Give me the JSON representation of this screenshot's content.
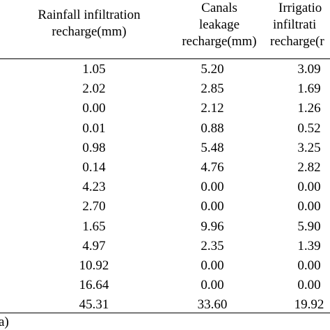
{
  "table": {
    "headers": [
      {
        "lines": [
          "Rainfall infiltration",
          "recharge(mm)"
        ]
      },
      {
        "lines": [
          "Canals",
          "leakage",
          "recharge(mm)"
        ]
      },
      {
        "lines": [
          "Irrigatio",
          "infiltrati",
          "recharge(r"
        ]
      }
    ],
    "rows": [
      [
        "1.05",
        "5.20",
        "3.09"
      ],
      [
        "2.02",
        "2.85",
        "1.69"
      ],
      [
        "0.00",
        "2.12",
        "1.26"
      ],
      [
        "0.01",
        "0.88",
        "0.52"
      ],
      [
        "0.98",
        "5.48",
        "3.25"
      ],
      [
        "0.14",
        "4.76",
        "2.82"
      ],
      [
        "4.23",
        "0.00",
        "0.00"
      ],
      [
        "2.70",
        "0.00",
        "0.00"
      ],
      [
        "1.65",
        "9.96",
        "5.90"
      ],
      [
        "4.97",
        "2.35",
        "1.39"
      ],
      [
        "10.92",
        "0.00",
        "0.00"
      ],
      [
        "16.64",
        "0.00",
        "0.00"
      ],
      [
        "45.31",
        "33.60",
        "19.92"
      ]
    ],
    "total_label_fragment": "a)"
  }
}
